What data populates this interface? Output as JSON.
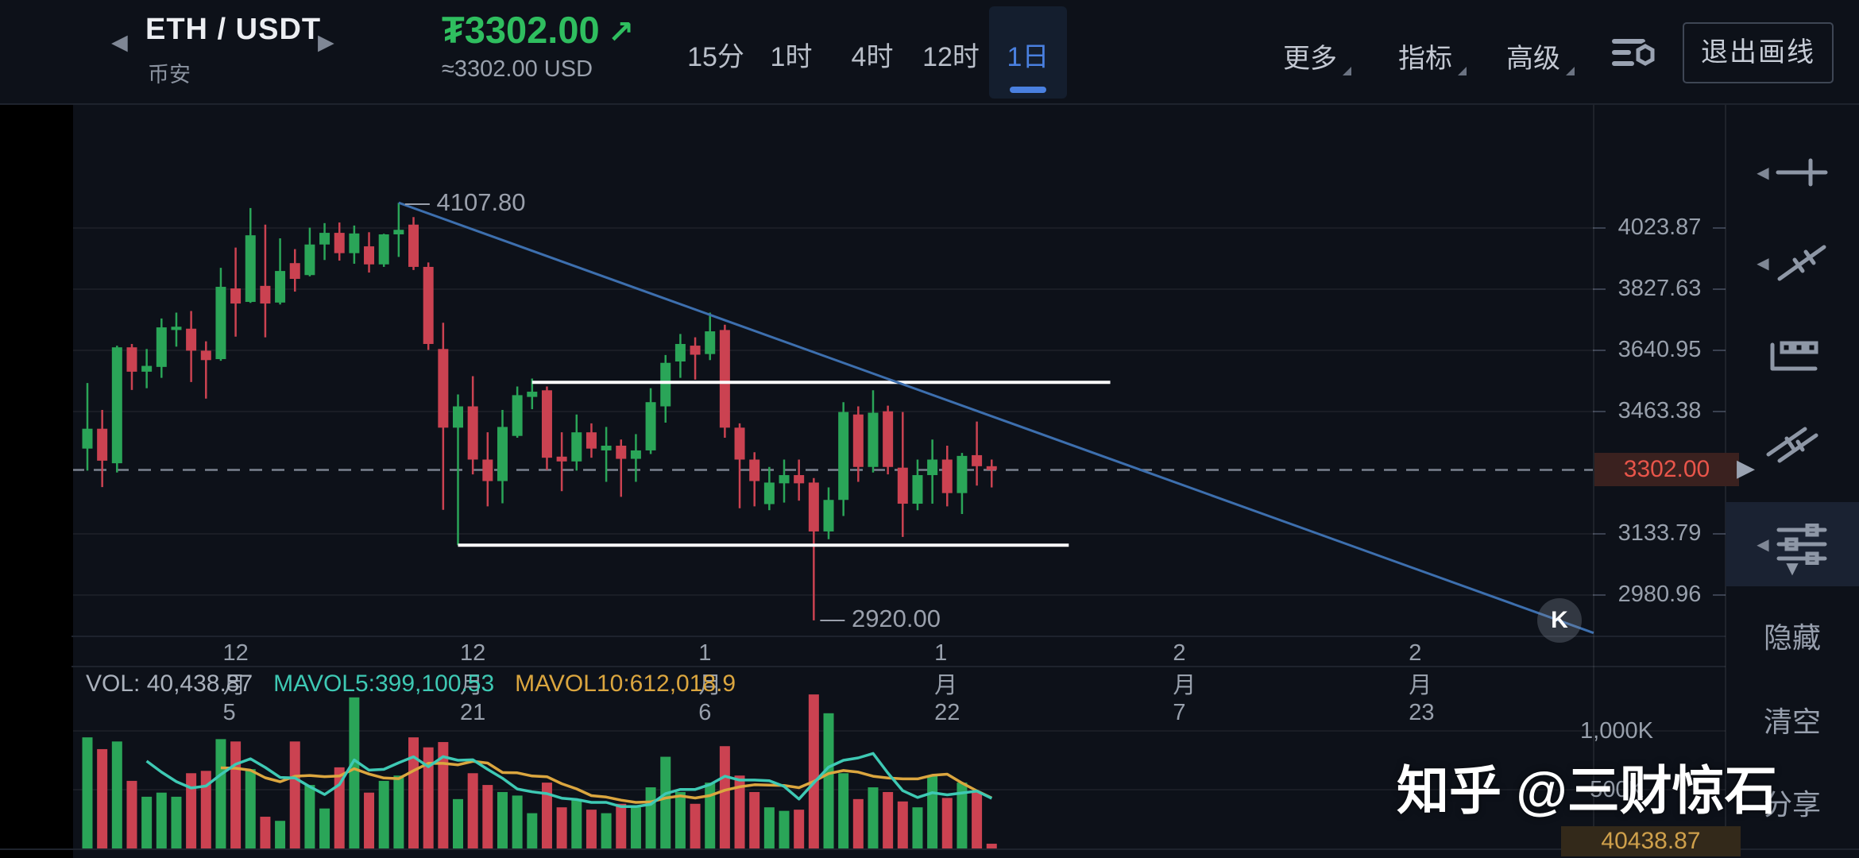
{
  "header": {
    "pair": "ETH / USDT",
    "exchange": "币安",
    "prev_symbol": "◀",
    "next_symbol": "▶",
    "price": "₮3302.00",
    "trend_arrow": "↗",
    "price_approx": "≈3302.00 USD",
    "timeframes": [
      {
        "label": "15分",
        "selected": false
      },
      {
        "label": "1时",
        "selected": false
      },
      {
        "label": "4时",
        "selected": false
      },
      {
        "label": "12时",
        "selected": false
      },
      {
        "label": "1日",
        "selected": true
      }
    ],
    "menus": [
      "更多",
      "指标",
      "高级"
    ],
    "exit_button": "退出画线"
  },
  "chart": {
    "current_price": "3302.00",
    "annotations": {
      "high": "4107.80",
      "low": "2920.00"
    },
    "k_marker": "K",
    "watermark": "知乎 @三财惊石"
  },
  "volume": {
    "legend": {
      "vol": "VOL: 40,438.87",
      "mavol5": "MAVOL5:399,100.53",
      "mavol10": "MAVOL10:612,018.9"
    },
    "y_axis_labels": [
      "1,000K",
      "500K"
    ],
    "current_label": "40438.87"
  },
  "sidebar": {
    "tools": [
      "horizontal-line-tool",
      "trend-line-tool",
      "pattern-tool",
      "parallel-channel-tool",
      "adjust-sliders-tool"
    ],
    "actions": [
      "隐藏",
      "清空",
      "分享"
    ]
  },
  "colors": {
    "up": "#2aa558",
    "down": "#cb4251",
    "accent_blue": "#4a80e0",
    "price_up": "#2fbe5f",
    "current_price": "#e8554a",
    "mavol5": "#3ec9b4",
    "mavol10": "#dba63f",
    "trendline": "#3d6fae",
    "vol_current": "#cfa04b"
  },
  "chart_data": {
    "type": "candlestick",
    "symbol": "ETH/USDT",
    "interval": "1日",
    "y_scale": "log",
    "price_ticks": [
      {
        "label": "4023.87",
        "value": 4023.87
      },
      {
        "label": "3827.63",
        "value": 3827.63
      },
      {
        "label": "3640.95",
        "value": 3640.95
      },
      {
        "label": "3463.38",
        "value": 3463.38
      },
      {
        "label": "3133.79",
        "value": 3133.79
      },
      {
        "label": "2980.96",
        "value": 2980.96
      }
    ],
    "current_price": {
      "label": "3302.00",
      "value": 3302.0
    },
    "high_annotation": {
      "label": "4107.80",
      "value": 4107.8
    },
    "low_annotation": {
      "label": "2920.00",
      "value": 2920.0
    },
    "resistance_line": {
      "price": 3547,
      "from_index": 30,
      "to_index": 69
    },
    "support_line": {
      "price": 3105,
      "from_index": 25,
      "to_index": 66.2
    },
    "trendline": {
      "from_index": 21,
      "from_price": 4107.8,
      "to_index": 101.6,
      "to_price": 2890
    },
    "k_marker_index": 99.3,
    "x_ticks": [
      {
        "index": 10,
        "label": "12月5"
      },
      {
        "index": 26,
        "label": "12月21"
      },
      {
        "index": 42,
        "label": "1月6"
      },
      {
        "index": 58,
        "label": "1月22"
      },
      {
        "index": 74,
        "label": "2月7"
      },
      {
        "index": 90,
        "label": "2月23"
      }
    ],
    "volume_ticks": [
      {
        "label": "1,000K",
        "value": 1000
      },
      {
        "label": "500K",
        "value": 500
      }
    ],
    "current_volume": {
      "label": "40438.87",
      "value": 40.44
    },
    "candles_format": "[open, high, low, close, volume_in_K]",
    "candles": [
      [
        3360,
        3545,
        3300,
        3415,
        945
      ],
      [
        3415,
        3468,
        3256,
        3327,
        845
      ],
      [
        3320,
        3655,
        3295,
        3650,
        910
      ],
      [
        3650,
        3660,
        3525,
        3578,
        575
      ],
      [
        3578,
        3645,
        3530,
        3595,
        440
      ],
      [
        3592,
        3737,
        3560,
        3710,
        475
      ],
      [
        3702,
        3755,
        3652,
        3712,
        440
      ],
      [
        3706,
        3760,
        3548,
        3640,
        640
      ],
      [
        3640,
        3668,
        3500,
        3612,
        660
      ],
      [
        3615,
        3895,
        3610,
        3835,
        930
      ],
      [
        3830,
        3960,
        3682,
        3783,
        910
      ],
      [
        3788,
        4090,
        3785,
        4000,
        675
      ],
      [
        3838,
        4035,
        3680,
        3783,
        270
      ],
      [
        3786,
        3990,
        3780,
        3885,
        235
      ],
      [
        3910,
        3955,
        3820,
        3860,
        910
      ],
      [
        3872,
        4025,
        3868,
        3970,
        540
      ],
      [
        3970,
        4040,
        3920,
        4008,
        340
      ],
      [
        4008,
        4042,
        3918,
        3942,
        690
      ],
      [
        3942,
        4032,
        3908,
        4006,
        1285
      ],
      [
        3964,
        4010,
        3880,
        3906,
        475
      ],
      [
        3906,
        4005,
        3898,
        4003,
        575
      ],
      [
        4003,
        4107.8,
        3930,
        4018,
        620
      ],
      [
        4035,
        4060,
        3888,
        3898,
        945
      ],
      [
        3898,
        3912,
        3642,
        3660,
        860
      ],
      [
        3645,
        3724,
        3196,
        3418,
        905
      ],
      [
        3418,
        3512,
        3105,
        3478,
        420
      ],
      [
        3478,
        3565,
        3290,
        3330,
        640
      ],
      [
        3330,
        3405,
        3205,
        3272,
        540
      ],
      [
        3272,
        3468,
        3213,
        3420,
        480
      ],
      [
        3395,
        3535,
        3390,
        3510,
        450
      ],
      [
        3505,
        3558,
        3470,
        3520,
        300
      ],
      [
        3524,
        3535,
        3302,
        3335,
        560
      ],
      [
        3338,
        3405,
        3245,
        3325,
        350
      ],
      [
        3325,
        3455,
        3300,
        3405,
        420
      ],
      [
        3405,
        3430,
        3335,
        3360,
        330
      ],
      [
        3355,
        3420,
        3270,
        3368,
        300
      ],
      [
        3368,
        3385,
        3230,
        3332,
        380
      ],
      [
        3332,
        3400,
        3270,
        3355,
        350
      ],
      [
        3355,
        3530,
        3345,
        3490,
        520
      ],
      [
        3478,
        3627,
        3432,
        3604,
        780
      ],
      [
        3608,
        3690,
        3560,
        3660,
        480
      ],
      [
        3655,
        3680,
        3555,
        3628,
        380
      ],
      [
        3630,
        3755,
        3612,
        3698,
        560
      ],
      [
        3702,
        3718,
        3390,
        3418,
        870
      ],
      [
        3418,
        3430,
        3200,
        3330,
        620
      ],
      [
        3330,
        3350,
        3205,
        3272,
        480
      ],
      [
        3211,
        3310,
        3195,
        3268,
        350
      ],
      [
        3266,
        3330,
        3215,
        3288,
        320
      ],
      [
        3288,
        3330,
        3220,
        3266,
        330
      ],
      [
        3268,
        3280,
        2920,
        3140,
        1310
      ],
      [
        3140,
        3255,
        3120,
        3222,
        1150
      ],
      [
        3222,
        3490,
        3180,
        3462,
        640
      ],
      [
        3455,
        3478,
        3270,
        3310,
        420
      ],
      [
        3310,
        3524,
        3295,
        3460,
        520
      ],
      [
        3464,
        3480,
        3290,
        3310,
        480
      ],
      [
        3308,
        3462,
        3126,
        3212,
        400
      ],
      [
        3212,
        3330,
        3195,
        3288,
        350
      ],
      [
        3288,
        3385,
        3212,
        3330,
        620
      ],
      [
        3330,
        3368,
        3205,
        3240,
        430
      ],
      [
        3240,
        3348,
        3185,
        3340,
        560
      ],
      [
        3342,
        3435,
        3260,
        3312,
        480
      ],
      [
        3312,
        3330,
        3255,
        3302,
        40.44
      ]
    ]
  }
}
